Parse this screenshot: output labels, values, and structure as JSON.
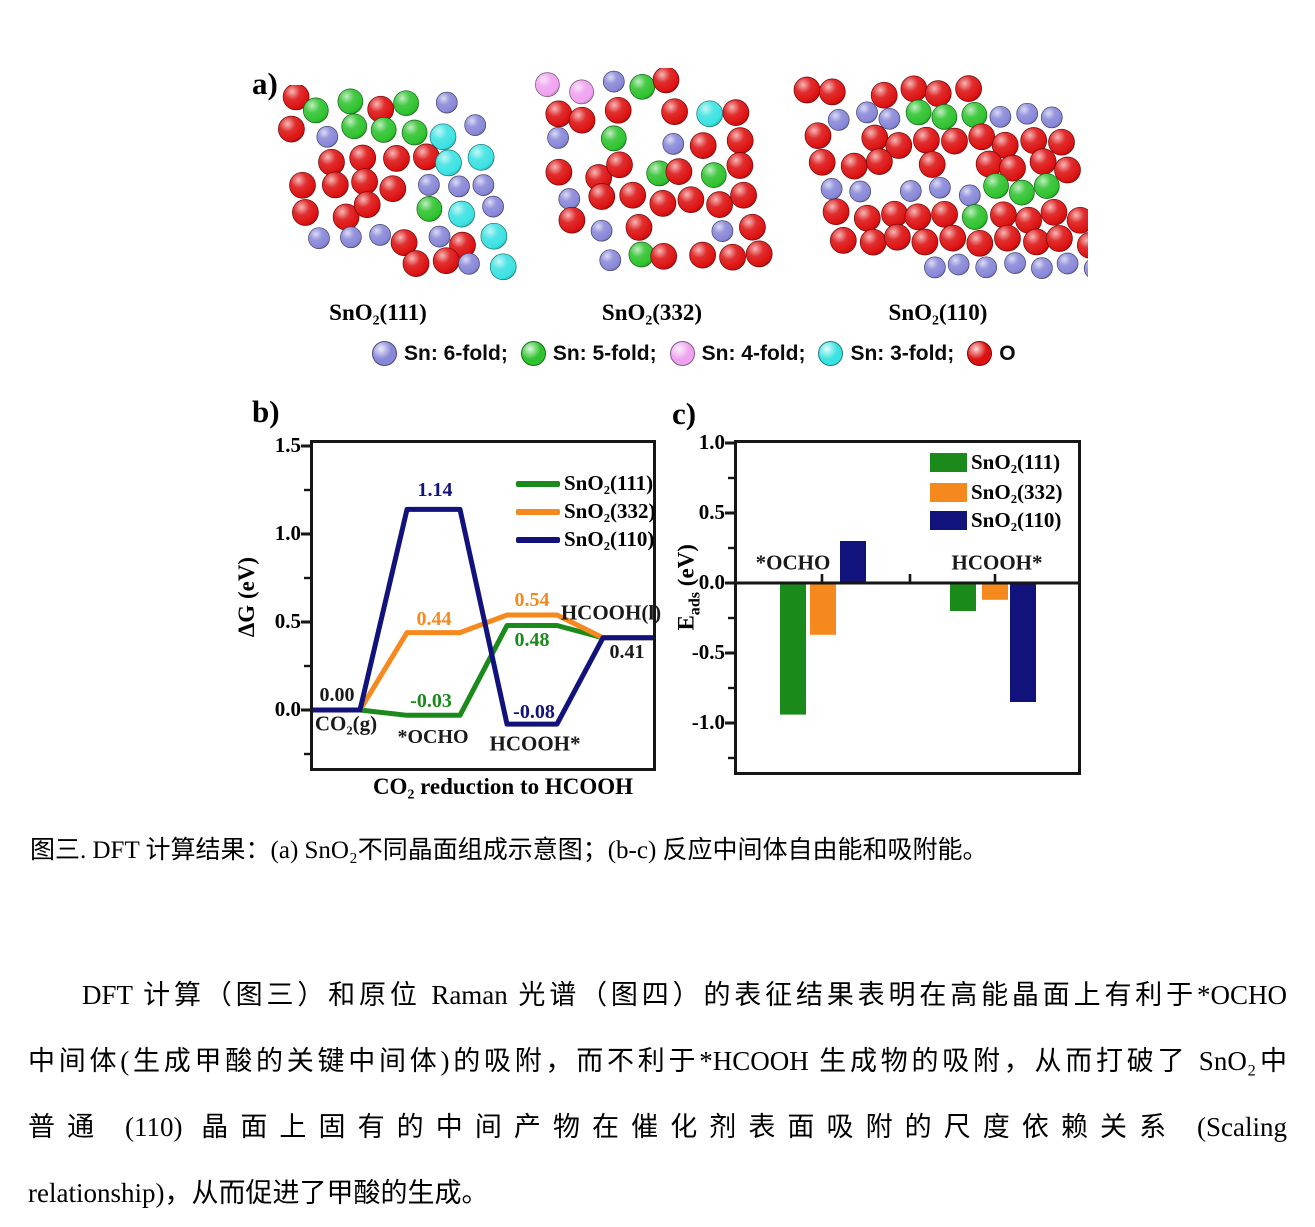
{
  "figure": {
    "panel_a": {
      "tag": "a)",
      "structures": [
        {
          "name": "SnO₂(111)"
        },
        {
          "name": "SnO₂(332)"
        },
        {
          "name": "SnO₂(110)"
        }
      ],
      "atom_legend": [
        {
          "label": "Sn: 6-fold;",
          "color": "#8887d8"
        },
        {
          "label": "Sn: 5-fold;",
          "color": "#2ec32e"
        },
        {
          "label": "Sn: 4-fold;",
          "color": "#efa2ef"
        },
        {
          "label": "Sn: 3-fold;",
          "color": "#3ae2e2"
        },
        {
          "label": "O",
          "color": "#dd1111"
        }
      ]
    },
    "panel_b": {
      "tag": "b)"
    },
    "panel_c": {
      "tag": "c)"
    }
  },
  "chart_data": [
    {
      "id": "free-energy-diagram",
      "type": "line",
      "xlabel": "CO₂ reduction to HCOOH",
      "ylabel": "ΔG (eV)",
      "ylim": [
        -0.33,
        1.52
      ],
      "yticks": [
        0.0,
        0.5,
        1.0,
        1.5
      ],
      "yticks_minor": [
        -0.25,
        0.25,
        0.75,
        1.25
      ],
      "grid": false,
      "legend_position": "top-right",
      "stages": [
        "CO₂(g)",
        "*OCHO",
        "HCOOH*",
        "HCOOH(l)"
      ],
      "series": [
        {
          "name": "SnO₂(111)",
          "color": "#1a8a1a",
          "values": [
            0.0,
            -0.03,
            0.48,
            0.41
          ]
        },
        {
          "name": "SnO₂(332)",
          "color": "#f6891e",
          "values": [
            0.0,
            0.44,
            0.54,
            0.41
          ]
        },
        {
          "name": "SnO₂(110)",
          "color": "#12127c",
          "values": [
            0.0,
            1.14,
            -0.08,
            0.41
          ]
        }
      ],
      "annotations": [
        {
          "t": "0.00",
          "x": 24,
          "y": 252,
          "c": "#1a1a1a"
        },
        {
          "t": "CO₂(g)",
          "x": 33,
          "y": 281,
          "c": "#1a1a1a"
        },
        {
          "t": "-0.03",
          "x": 118,
          "y": 258,
          "c": "#1a8a1a"
        },
        {
          "t": "*OCHO",
          "x": 120,
          "y": 294,
          "c": "#1a1a1a"
        },
        {
          "t": "1.14",
          "x": 122,
          "y": 47,
          "c": "#12127c"
        },
        {
          "t": "0.44",
          "x": 121,
          "y": 176,
          "c": "#f6891e"
        },
        {
          "t": "0.54",
          "x": 219,
          "y": 157,
          "c": "#f6891e"
        },
        {
          "t": "0.48",
          "x": 219,
          "y": 197,
          "c": "#1a8a1a"
        },
        {
          "t": "-0.08",
          "x": 221,
          "y": 269,
          "c": "#12127c"
        },
        {
          "t": "HCOOH*",
          "x": 222,
          "y": 301,
          "c": "#1a1a1a"
        },
        {
          "t": "HCOOH(l)",
          "x": 298,
          "y": 170,
          "c": "#1a1a1a"
        },
        {
          "t": "0.41",
          "x": 314,
          "y": 209,
          "c": "#1a1a1a"
        }
      ]
    },
    {
      "id": "adsorption-energy",
      "type": "bar",
      "ylabel_parts": {
        "base": "E",
        "sub": "ads",
        "unit": " (eV)"
      },
      "ylim": [
        -1.35,
        1.0
      ],
      "yticks": [
        1.0,
        0.5,
        0.0,
        -0.5,
        -1.0
      ],
      "yticks_minor": [
        0.75,
        0.25,
        -0.25,
        -0.75,
        -1.25
      ],
      "grid": false,
      "legend_position": "top-right",
      "categories": [
        "*OCHO",
        "HCOOH*"
      ],
      "series": [
        {
          "name": "SnO₂(111)",
          "color": "#1a8a1a",
          "values": [
            -0.94,
            -0.2
          ]
        },
        {
          "name": "SnO₂(332)",
          "color": "#f6891e",
          "values": [
            -0.37,
            -0.12
          ]
        },
        {
          "name": "SnO₂(110)",
          "color": "#12127c",
          "values": [
            0.3,
            -0.85
          ]
        }
      ]
    }
  ],
  "caption": "图三. DFT 计算结果：(a) SnO₂不同晶面组成示意图；(b-c) 反应中间体自由能和吸附能。",
  "paragraph": {
    "lines": [
      "DFT 计算（图三）和原位 Raman 光谱（图四）的表征结果表明在高能晶面上有利于*OCHO",
      "中间体(生成甲酸的关键中间体)的吸附，而不利于*HCOOH 生成物的吸附，从而打破了 SnO₂中",
      "普通 (110) 晶面上固有的中间产物在催化剂表面吸附的尺度依赖关系 (Scaling",
      "relationship)，从而促进了甲酸的生成。"
    ]
  }
}
